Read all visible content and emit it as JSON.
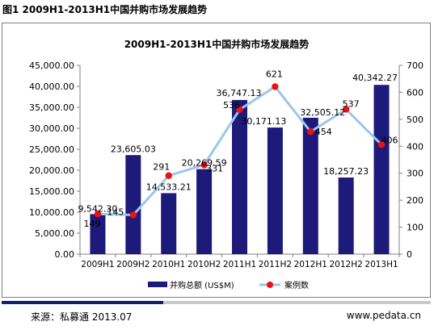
{
  "figure_label": "图1 2009H1-2013H1中国并购市场发展趋势",
  "footer": {
    "source": "来源：私募通 2013.07",
    "website": "www.pedata.cn"
  },
  "colors": {
    "bar": "#1d1a7a",
    "line": "#9ec5ec",
    "marker": "#ee1111",
    "footer_dark": "#0a2472",
    "footer_light": "#c9c9c9"
  },
  "chart_data": {
    "type": "bar",
    "title": "2009H1-2013H1中国并购市场发展趋势",
    "categories": [
      "2009H1",
      "2009H2",
      "2010H1",
      "2010H2",
      "2011H1",
      "2011H2",
      "2012H1",
      "2012H2",
      "2013H1"
    ],
    "series": [
      {
        "name": "并购总额 (US$M)",
        "type": "bar",
        "axis": "left",
        "values": [
          9542.3,
          23605.03,
          14533.21,
          20269.59,
          36747.13,
          30171.13,
          32505.12,
          18257.23,
          40342.27
        ],
        "labels": [
          "9,542.30",
          "23,605.03",
          "14,533.21",
          "20,269.59",
          "36,747.13",
          "30,171.13",
          "32,505.12",
          "18,257.23",
          "40,342.27"
        ]
      },
      {
        "name": "案例数",
        "type": "line",
        "axis": "right",
        "values": [
          149,
          145,
          291,
          331,
          536,
          621,
          454,
          537,
          406
        ],
        "labels": [
          "149",
          "145",
          "291",
          "331",
          "536",
          "621",
          "454",
          "537",
          "406"
        ]
      }
    ],
    "y_left": {
      "min": 0,
      "max": 45000,
      "step": 5000,
      "ticks": [
        "0.00",
        "5,000.00",
        "10,000.00",
        "15,000.00",
        "20,000.00",
        "25,000.00",
        "30,000.00",
        "35,000.00",
        "40,000.00",
        "45,000.00"
      ]
    },
    "y_right": {
      "min": 0,
      "max": 700,
      "step": 100,
      "ticks": [
        "0",
        "100",
        "200",
        "300",
        "400",
        "500",
        "600",
        "700"
      ]
    },
    "legend_position": "bottom",
    "grid": false
  }
}
